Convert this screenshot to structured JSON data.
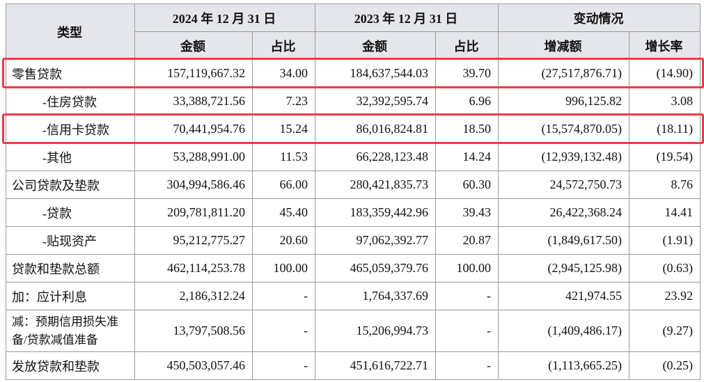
{
  "header": {
    "category": "类型",
    "groups": [
      "2024 年 12 月 31 日",
      "2023 年 12 月 31 日",
      "变动情况"
    ],
    "columns": [
      "金额",
      "占比",
      "金额",
      "占比",
      "增减额",
      "增长率"
    ]
  },
  "rows": [
    [
      "零售贷款",
      "157,119,667.32",
      "34.00",
      "184,637,544.03",
      "39.70",
      "(27,517,876.71)",
      "(14.90)"
    ],
    [
      "-住房贷款",
      "33,388,721.56",
      "7.23",
      "32,392,595.74",
      "6.96",
      "996,125.82",
      "3.08"
    ],
    [
      "-信用卡贷款",
      "70,441,954.76",
      "15.24",
      "86,016,824.81",
      "18.50",
      "(15,574,870.05)",
      "(18.11)"
    ],
    [
      "-其他",
      "53,288,991.00",
      "11.53",
      "66,228,123.48",
      "14.24",
      "(12,939,132.48)",
      "(19.54)"
    ],
    [
      "公司贷款及垫款",
      "304,994,586.46",
      "66.00",
      "280,421,835.73",
      "60.30",
      "24,572,750.73",
      "8.76"
    ],
    [
      "-贷款",
      "209,781,811.20",
      "45.40",
      "183,359,442.96",
      "39.43",
      "26,422,368.24",
      "14.41"
    ],
    [
      "-贴现资产",
      "95,212,775.27",
      "20.60",
      "97,062,392.77",
      "20.87",
      "(1,849,617.50)",
      "(1.91)"
    ],
    [
      "贷款和垫款总额",
      "462,114,253.78",
      "100.00",
      "465,059,379.76",
      "100.00",
      "(2,945,125.98)",
      "(0.63)"
    ],
    [
      "加：应计利息",
      "2,186,312.24",
      "-",
      "1,764,337.69",
      "-",
      "421,974.55",
      "23.92"
    ],
    [
      "减：预期信用损失准备/贷款减值准备",
      "13,797,508.56",
      "-",
      "15,206,994.73",
      "-",
      "(1,409,486.17)",
      "(9.27)"
    ],
    [
      "发放贷款和垫款",
      "450,503,057.46",
      "-",
      "451,616,722.71",
      "-",
      "(1,113,665.25)",
      "(0.25)"
    ]
  ]
}
